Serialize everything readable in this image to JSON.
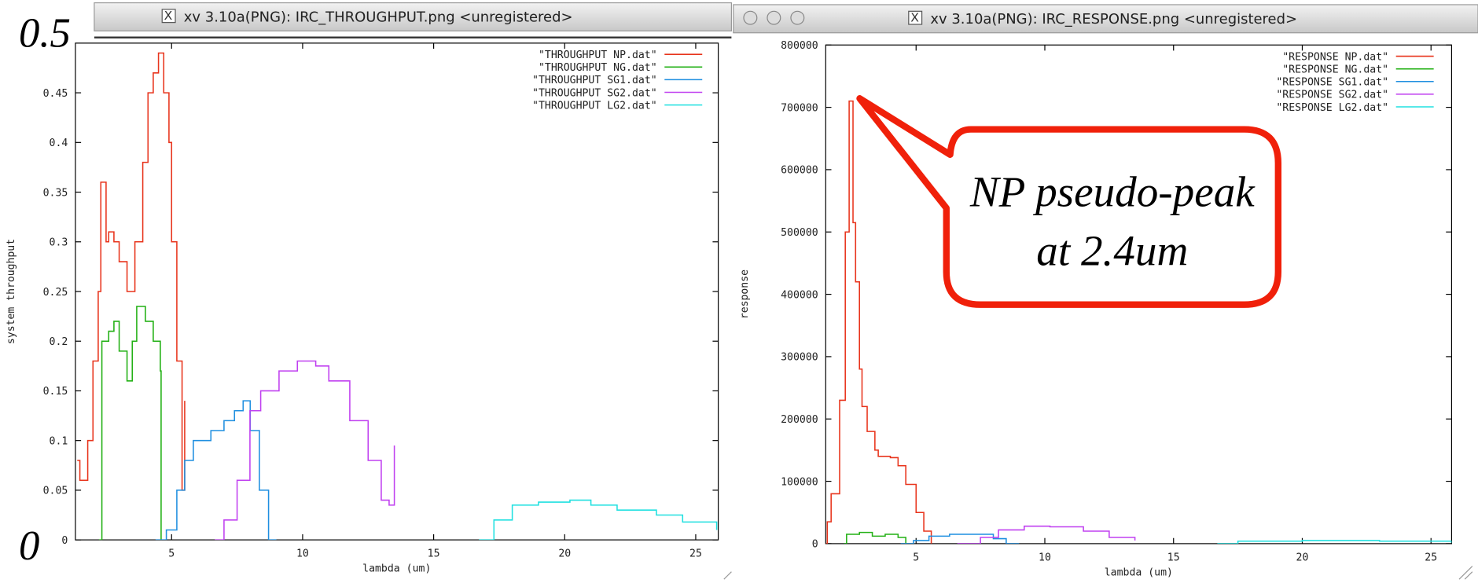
{
  "chart_data": [
    {
      "type": "line",
      "window_title": "xv 3.10a(PNG): IRC_THROUGHPUT.png <unregistered>",
      "x_label": "lambda (um)",
      "y_label": "system throughput",
      "annotations": [
        "0.5",
        "0"
      ],
      "xlim": [
        1.33,
        25.86
      ],
      "ylim": [
        0,
        0.5
      ],
      "xticks": [
        5,
        10,
        15,
        20,
        25
      ],
      "yticks": [
        0,
        0.05,
        0.1,
        0.15,
        0.2,
        0.25,
        0.3,
        0.35,
        0.4,
        0.45
      ],
      "grid": false,
      "step": true,
      "legend": "top-right",
      "series": [
        {
          "name": "\"THROUGHPUT NP.dat\"",
          "color": "#e8341c",
          "x": [
            1.4,
            1.5,
            1.8,
            2.0,
            2.2,
            2.3,
            2.5,
            2.6,
            2.8,
            3.0,
            3.3,
            3.6,
            3.9,
            4.1,
            4.3,
            4.5,
            4.7,
            4.9,
            5.0,
            5.2,
            5.4,
            5.5
          ],
          "values": [
            0.08,
            0.06,
            0.1,
            0.18,
            0.25,
            0.36,
            0.3,
            0.31,
            0.3,
            0.28,
            0.25,
            0.3,
            0.38,
            0.45,
            0.47,
            0.49,
            0.45,
            0.4,
            0.3,
            0.18,
            0.05,
            0.14
          ]
        },
        {
          "name": "\"THROUGHPUT NG.dat\"",
          "color": "#22b014",
          "x": [
            2.23,
            2.34,
            2.6,
            2.8,
            3.0,
            3.3,
            3.5,
            3.67,
            4.0,
            4.3,
            4.57,
            4.6
          ],
          "values": [
            0,
            0.2,
            0.21,
            0.22,
            0.19,
            0.16,
            0.2,
            0.235,
            0.22,
            0.2,
            0.17,
            0
          ]
        },
        {
          "name": "\"THROUGHPUT SG1.dat\"",
          "color": "#1f8fe0",
          "x": [
            4.39,
            4.8,
            5.2,
            5.5,
            5.83,
            6.5,
            7.0,
            7.4,
            7.73,
            8.0,
            8.35,
            8.7,
            9.0
          ],
          "values": [
            0,
            0.01,
            0.05,
            0.08,
            0.1,
            0.11,
            0.12,
            0.13,
            0.14,
            0.11,
            0.05,
            0,
            0
          ]
        },
        {
          "name": "\"THROUGHPUT SG2.dat\"",
          "color": "#c040f0",
          "x": [
            6.65,
            7.0,
            7.5,
            7.99,
            8.4,
            9.1,
            9.8,
            10.5,
            11.0,
            11.8,
            12.5,
            13.0,
            13.3,
            13.5
          ],
          "values": [
            0,
            0.02,
            0.06,
            0.13,
            0.15,
            0.17,
            0.18,
            0.175,
            0.16,
            0.12,
            0.08,
            0.04,
            0.035,
            0.095
          ]
        },
        {
          "name": "\"THROUGHPUT LG2.dat\"",
          "color": "#20e0e0",
          "x": [
            16.73,
            17.3,
            18.0,
            19.0,
            20.2,
            21.0,
            22.0,
            23.5,
            24.5,
            25.8
          ],
          "values": [
            0,
            0.02,
            0.035,
            0.038,
            0.04,
            0.035,
            0.03,
            0.025,
            0.018,
            0.01
          ]
        }
      ]
    },
    {
      "type": "line",
      "window_title": "xv 3.10a(PNG): IRC_RESPONSE.png <unregistered>",
      "x_label": "lambda (um)",
      "y_label": "response",
      "annotations": [
        "NP pseudo-peak",
        "at 2.4um"
      ],
      "xlim": [
        1.49,
        25.8
      ],
      "ylim": [
        0,
        800000
      ],
      "xticks": [
        5,
        10,
        15,
        20,
        25
      ],
      "yticks": [
        0,
        100000,
        200000,
        300000,
        400000,
        500000,
        600000,
        700000,
        800000
      ],
      "grid": false,
      "step": true,
      "legend": "top-right",
      "series": [
        {
          "name": "\"RESPONSE NP.dat\"",
          "color": "#e8341c",
          "x": [
            1.5,
            1.55,
            1.7,
            2.03,
            2.25,
            2.4,
            2.55,
            2.65,
            2.8,
            2.9,
            3.1,
            3.4,
            3.53,
            4.0,
            4.3,
            4.6,
            5.0,
            5.3,
            5.59
          ],
          "values": [
            0,
            35000,
            80000,
            230000,
            500000,
            710000,
            515000,
            420000,
            280000,
            220000,
            180000,
            150000,
            140000,
            138000,
            125000,
            95000,
            50000,
            20000,
            0
          ]
        },
        {
          "name": "\"RESPONSE NG.dat\"",
          "color": "#22b014",
          "x": [
            2.2,
            2.3,
            2.8,
            3.3,
            3.8,
            4.3,
            4.6
          ],
          "values": [
            0,
            15000,
            18000,
            12000,
            15000,
            10000,
            0
          ]
        },
        {
          "name": "\"RESPONSE SG1.dat\"",
          "color": "#1f8fe0",
          "x": [
            4.4,
            4.9,
            5.5,
            6.3,
            7.5,
            8.0,
            8.5,
            9.0
          ],
          "values": [
            0,
            5000,
            12000,
            15000,
            15000,
            8000,
            0,
            0
          ]
        },
        {
          "name": "\"RESPONSE SG2.dat\"",
          "color": "#c040f0",
          "x": [
            6.6,
            7.5,
            8.2,
            9.2,
            10.2,
            11.5,
            12.5,
            13.5
          ],
          "values": [
            0,
            10000,
            22000,
            28000,
            27000,
            20000,
            10000,
            5000
          ]
        },
        {
          "name": "\"RESPONSE LG2.dat\"",
          "color": "#20e0e0",
          "x": [
            16.7,
            17.5,
            20.0,
            23.0,
            25.8
          ],
          "values": [
            0,
            4000,
            5000,
            4000,
            1000
          ]
        }
      ]
    }
  ]
}
